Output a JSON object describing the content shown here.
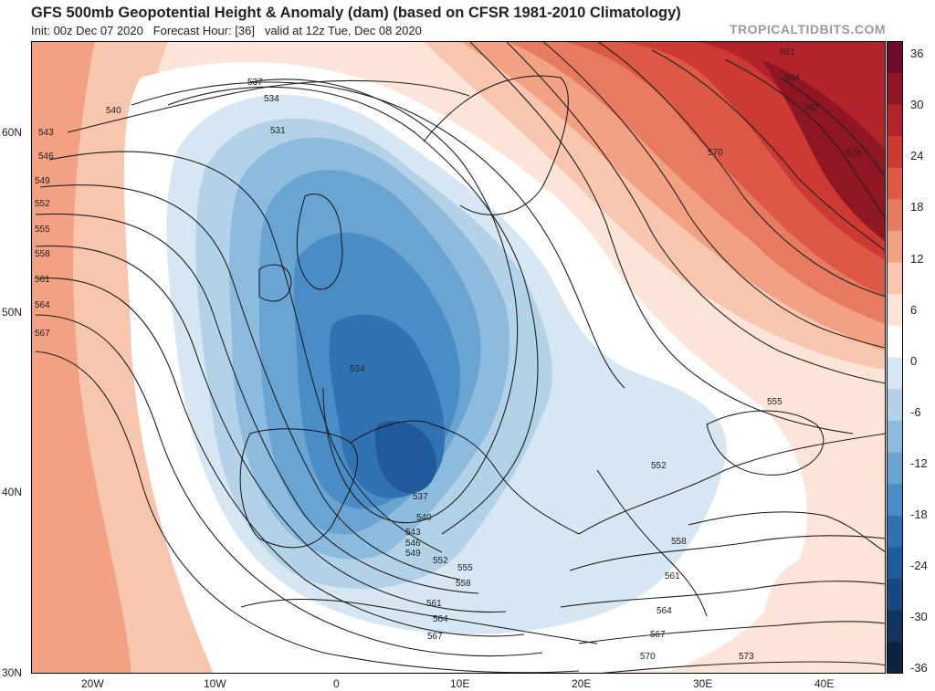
{
  "header": {
    "title": "GFS 500mb Geopotential Height & Anomaly (dam) (based on CFSR 1981-2010 Climatology)",
    "init": "Init: 00z Dec 07 2020",
    "forecast_hour": "Forecast Hour: [36]",
    "valid": "valid at 12z Tue, Dec 08 2020",
    "credit": "TROPICALTIDBITS.COM"
  },
  "colorbar": {
    "labels": [
      "36",
      "30",
      "24",
      "18",
      "12",
      "6",
      "0",
      "-6",
      "-12",
      "-18",
      "-24",
      "-30",
      "-36"
    ],
    "colors": [
      "#6e0b2a",
      "#8f1622",
      "#b3242a",
      "#cc3a33",
      "#dc5946",
      "#e77b62",
      "#f2a183",
      "#f8c6ae",
      "#fde4d8",
      "#ffffff",
      "#d6e6f2",
      "#b3d2e8",
      "#8cbbde",
      "#6aa4d2",
      "#4a8cc5",
      "#3172b3",
      "#215a9c",
      "#184781",
      "#12345f",
      "#0d233f"
    ]
  },
  "axes": {
    "lat_labels": [
      "60N",
      "50N",
      "40N",
      "30N"
    ],
    "lon_labels": [
      "20W",
      "10W",
      "0",
      "10E",
      "20E",
      "30E",
      "40E"
    ]
  },
  "contours": {
    "labels": [
      "537",
      "534",
      "531",
      "540",
      "543",
      "546",
      "549",
      "552",
      "555",
      "558",
      "561",
      "564",
      "567",
      "534",
      "537",
      "540",
      "543",
      "546",
      "549",
      "552",
      "555",
      "558",
      "561",
      "564",
      "567",
      "570",
      "573",
      "552",
      "555",
      "558",
      "561",
      "564",
      "567",
      "570",
      "561",
      "564",
      "567",
      "570"
    ]
  }
}
